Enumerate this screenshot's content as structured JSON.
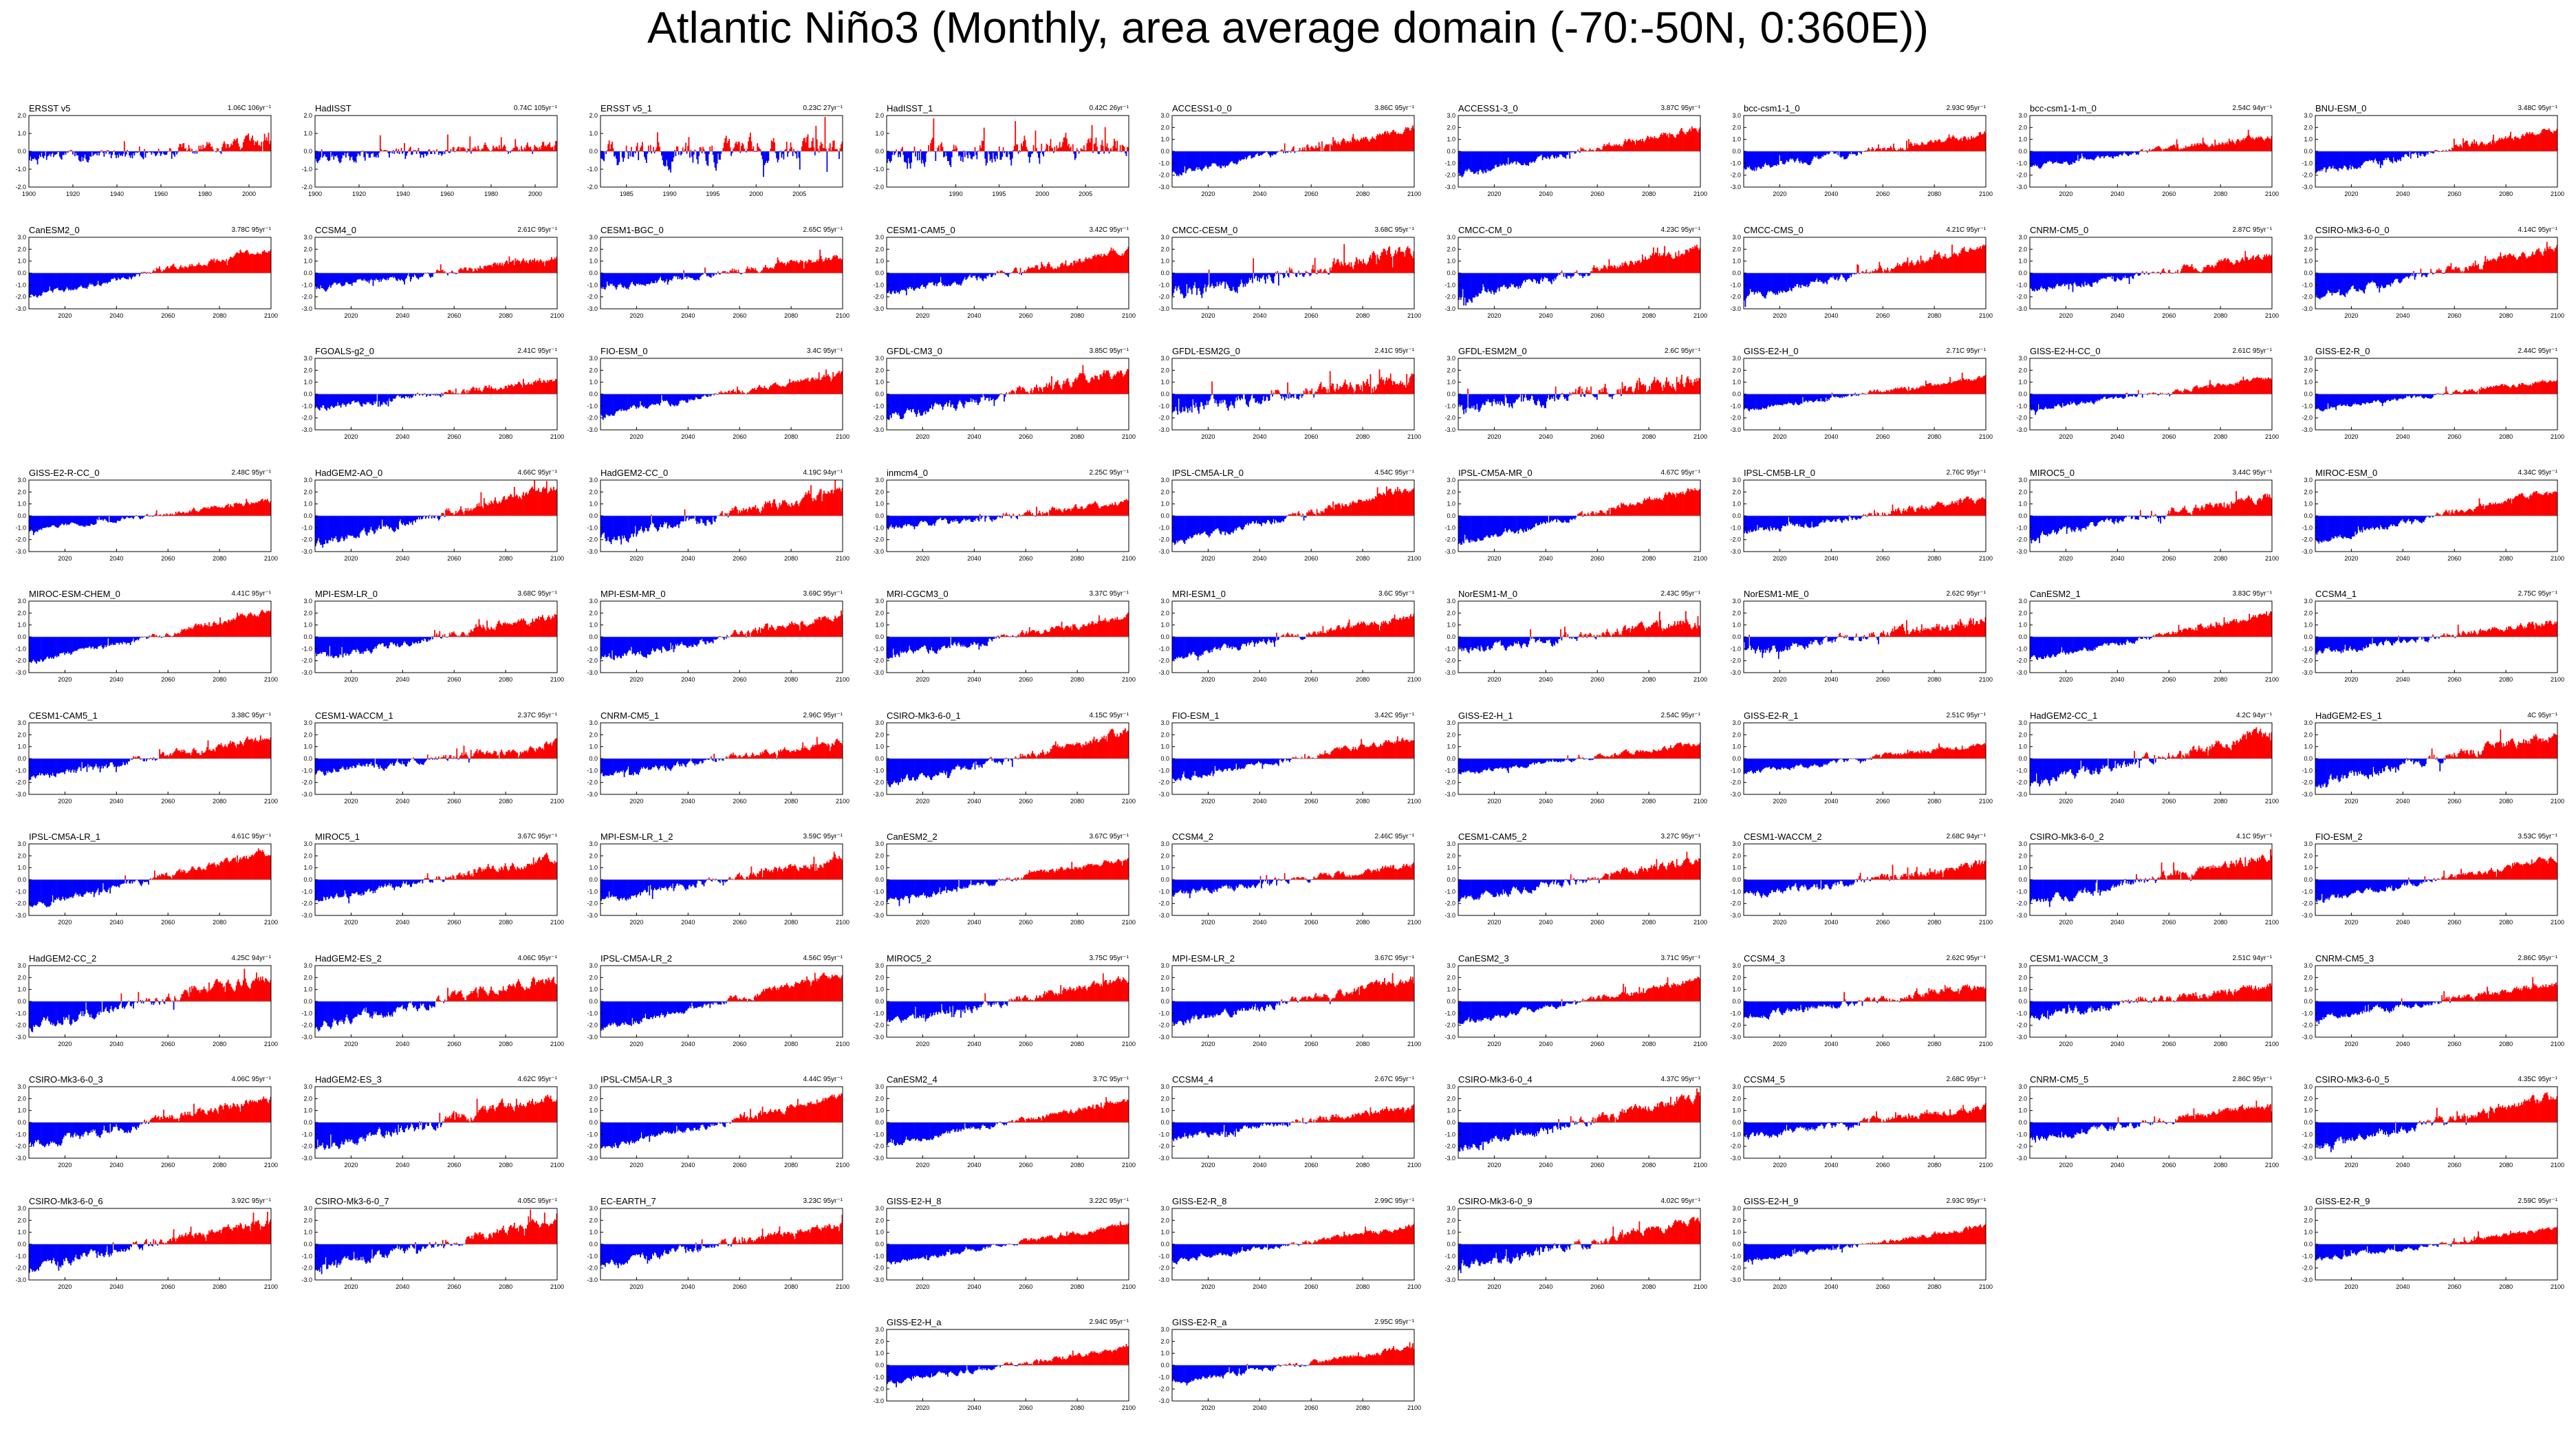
{
  "figure": {
    "title": "Atlantic Niño3 (Monthly, area average domain (-70:-50N, 0:360E))",
    "colors": {
      "positive": "#ff0000",
      "negative": "#0000ff",
      "line": "#808080",
      "axis": "#000000"
    }
  },
  "chart_data": [
    {
      "type": "area",
      "title": "ERSST v5",
      "trend": "1.06C 106yr⁻¹",
      "x_range": [
        1900,
        2010
      ],
      "ylim": [
        -2,
        2
      ],
      "yticks": [
        "-2.0",
        "-1.0",
        "0.0",
        "1.0",
        "2.0"
      ],
      "xticks": [
        "1900",
        "1920",
        "1940",
        "1960",
        "1980",
        "2000"
      ],
      "trend_total": 1.06,
      "variability": 0.35,
      "seed": 1
    },
    {
      "type": "area",
      "title": "HadISST",
      "trend": "0.74C 105yr⁻¹",
      "x_range": [
        1900,
        2010
      ],
      "ylim": [
        -2,
        2
      ],
      "yticks": [
        "-2.0",
        "-1.0",
        "0.0",
        "1.0",
        "2.0"
      ],
      "xticks": [
        "1900",
        "1920",
        "1940",
        "1960",
        "1980",
        "2000"
      ],
      "trend_total": 0.74,
      "variability": 0.35,
      "seed": 2
    },
    {
      "type": "area",
      "title": "ERSST v5_1",
      "trend": "0.23C 27yr⁻¹",
      "x_range": [
        1982,
        2010
      ],
      "ylim": [
        -2,
        2
      ],
      "yticks": [
        "-2.0",
        "-1.0",
        "0.0",
        "1.0",
        "2.0"
      ],
      "xticks": [
        "1985",
        "1990",
        "1995",
        "2000",
        "2005"
      ],
      "trend_total": 0.23,
      "variability": 0.7,
      "seed": 3
    },
    {
      "type": "area",
      "title": "HadISST_1",
      "trend": "0.42C 26yr⁻¹",
      "x_range": [
        1982,
        2010
      ],
      "ylim": [
        -2,
        2
      ],
      "yticks": [
        "-2.0",
        "-1.0",
        "0.0",
        "1.0",
        "2.0"
      ],
      "xticks": [
        "1990",
        "1995",
        "2000",
        "2005"
      ],
      "trend_total": 0.42,
      "variability": 0.7,
      "seed": 4
    },
    {
      "type": "area",
      "title": "ACCESS1-0_0",
      "trend": "3.86C 95yr⁻¹",
      "trend_total": 3.86,
      "variability": 0.3,
      "seed": 5
    },
    {
      "type": "area",
      "title": "ACCESS1-3_0",
      "trend": "3.87C 95yr⁻¹",
      "trend_total": 3.87,
      "variability": 0.3,
      "seed": 6
    },
    {
      "type": "area",
      "title": "bcc-csm1-1_0",
      "trend": "2.93C 95yr⁻¹",
      "trend_total": 2.93,
      "variability": 0.3,
      "seed": 7
    },
    {
      "type": "area",
      "title": "bcc-csm1-1-m_0",
      "trend": "2.54C 94yr⁻¹",
      "trend_total": 2.54,
      "variability": 0.25,
      "seed": 8
    },
    {
      "type": "area",
      "title": "BNU-ESM_0",
      "trend": "3.48C 95yr⁻¹",
      "trend_total": 3.48,
      "variability": 0.3,
      "seed": 9
    },
    {
      "type": "area",
      "title": "CanESM2_0",
      "trend": "3.78C 95yr⁻¹",
      "trend_total": 3.78,
      "variability": 0.25,
      "seed": 10
    },
    {
      "type": "area",
      "title": "CCSM4_0",
      "trend": "2.61C 95yr⁻¹",
      "trend_total": 2.61,
      "variability": 0.3,
      "seed": 11
    },
    {
      "type": "area",
      "title": "CESM1-BGC_0",
      "trend": "2.65C 95yr⁻¹",
      "trend_total": 2.65,
      "variability": 0.3,
      "seed": 12
    },
    {
      "type": "area",
      "title": "CESM1-CAM5_0",
      "trend": "3.42C 95yr⁻¹",
      "trend_total": 3.42,
      "variability": 0.3,
      "seed": 13
    },
    {
      "type": "area",
      "title": "CMCC-CESM_0",
      "trend": "3.68C 95yr⁻¹",
      "trend_total": 3.68,
      "variability": 0.6,
      "seed": 14
    },
    {
      "type": "area",
      "title": "CMCC-CM_0",
      "trend": "4.23C 95yr⁻¹",
      "trend_total": 4.23,
      "variability": 0.4,
      "seed": 15
    },
    {
      "type": "area",
      "title": "CMCC-CMS_0",
      "trend": "4.21C 95yr⁻¹",
      "trend_total": 4.21,
      "variability": 0.35,
      "seed": 16
    },
    {
      "type": "area",
      "title": "CNRM-CM5_0",
      "trend": "2.87C 95yr⁻¹",
      "trend_total": 2.87,
      "variability": 0.3,
      "seed": 17
    },
    {
      "type": "area",
      "title": "CSIRO-Mk3-6-0_0",
      "trend": "4.14C 95yr⁻¹",
      "trend_total": 4.14,
      "variability": 0.35,
      "seed": 18
    },
    {
      "type": "area",
      "title": "FGOALS-g2_0",
      "trend": "2.41C 95yr⁻¹",
      "trend_total": 2.41,
      "variability": 0.3,
      "seed": 19
    },
    {
      "type": "area",
      "title": "FIO-ESM_0",
      "trend": "3.4C 95yr⁻¹",
      "trend_total": 3.4,
      "variability": 0.25,
      "seed": 20
    },
    {
      "type": "area",
      "title": "GFDL-CM3_0",
      "trend": "3.85C 95yr⁻¹",
      "trend_total": 3.85,
      "variability": 0.45,
      "seed": 21
    },
    {
      "type": "area",
      "title": "GFDL-ESM2G_0",
      "trend": "2.41C 95yr⁻¹",
      "trend_total": 2.41,
      "variability": 0.6,
      "seed": 22
    },
    {
      "type": "area",
      "title": "GFDL-ESM2M_0",
      "trend": "2.6C 95yr⁻¹",
      "trend_total": 2.6,
      "variability": 0.6,
      "seed": 23
    },
    {
      "type": "area",
      "title": "GISS-E2-H_0",
      "trend": "2.71C 95yr⁻¹",
      "trend_total": 2.71,
      "variability": 0.2,
      "seed": 24
    },
    {
      "type": "area",
      "title": "GISS-E2-H-CC_0",
      "trend": "2.61C 95yr⁻¹",
      "trend_total": 2.61,
      "variability": 0.2,
      "seed": 25
    },
    {
      "type": "area",
      "title": "GISS-E2-R_0",
      "trend": "2.44C 95yr⁻¹",
      "trend_total": 2.44,
      "variability": 0.2,
      "seed": 26
    },
    {
      "type": "area",
      "title": "GISS-E2-R-CC_0",
      "trend": "2.48C 95yr⁻¹",
      "trend_total": 2.48,
      "variability": 0.2,
      "seed": 27
    },
    {
      "type": "area",
      "title": "HadGEM2-AO_0",
      "trend": "4.66C 95yr⁻¹",
      "trend_total": 4.66,
      "variability": 0.4,
      "seed": 28
    },
    {
      "type": "area",
      "title": "HadGEM2-CC_0",
      "trend": "4.19C 94yr⁻¹",
      "trend_total": 4.19,
      "variability": 0.45,
      "seed": 29
    },
    {
      "type": "area",
      "title": "inmcm4_0",
      "trend": "2.25C 95yr⁻¹",
      "trend_total": 2.25,
      "variability": 0.3,
      "seed": 30
    },
    {
      "type": "area",
      "title": "IPSL-CM5A-LR_0",
      "trend": "4.54C 95yr⁻¹",
      "trend_total": 4.54,
      "variability": 0.3,
      "seed": 31
    },
    {
      "type": "area",
      "title": "IPSL-CM5A-MR_0",
      "trend": "4.67C 95yr⁻¹",
      "trend_total": 4.67,
      "variability": 0.3,
      "seed": 32
    },
    {
      "type": "area",
      "title": "IPSL-CM5B-LR_0",
      "trend": "2.76C 95yr⁻¹",
      "trend_total": 2.76,
      "variability": 0.3,
      "seed": 33
    },
    {
      "type": "area",
      "title": "MIROC5_0",
      "trend": "3.44C 95yr⁻¹",
      "trend_total": 3.44,
      "variability": 0.35,
      "seed": 34
    },
    {
      "type": "area",
      "title": "MIROC-ESM_0",
      "trend": "4.34C 95yr⁻¹",
      "trend_total": 4.34,
      "variability": 0.25,
      "seed": 35
    },
    {
      "type": "area",
      "title": "MIROC-ESM-CHEM_0",
      "trend": "4.41C 95yr⁻¹",
      "trend_total": 4.41,
      "variability": 0.25,
      "seed": 36
    },
    {
      "type": "area",
      "title": "MPI-ESM-LR_0",
      "trend": "3.68C 95yr⁻¹",
      "trend_total": 3.68,
      "variability": 0.35,
      "seed": 37
    },
    {
      "type": "area",
      "title": "MPI-ESM-MR_0",
      "trend": "3.69C 95yr⁻¹",
      "trend_total": 3.69,
      "variability": 0.35,
      "seed": 38
    },
    {
      "type": "area",
      "title": "MRI-CGCM3_0",
      "trend": "3.37C 95yr⁻¹",
      "trend_total": 3.37,
      "variability": 0.3,
      "seed": 39
    },
    {
      "type": "area",
      "title": "MRI-ESM1_0",
      "trend": "3.6C 95yr⁻¹",
      "trend_total": 3.6,
      "variability": 0.3,
      "seed": 40
    },
    {
      "type": "area",
      "title": "NorESM1-M_0",
      "trend": "2.43C 95yr⁻¹",
      "trend_total": 2.43,
      "variability": 0.45,
      "seed": 41
    },
    {
      "type": "area",
      "title": "NorESM1-ME_0",
      "trend": "2.62C 95yr⁻¹",
      "trend_total": 2.62,
      "variability": 0.45,
      "seed": 42
    },
    {
      "type": "area",
      "title": "CanESM2_1",
      "trend": "3.83C 95yr⁻¹",
      "trend_total": 3.83,
      "variability": 0.25,
      "seed": 43
    },
    {
      "type": "area",
      "title": "CCSM4_1",
      "trend": "2.75C 95yr⁻¹",
      "trend_total": 2.75,
      "variability": 0.3,
      "seed": 44
    },
    {
      "type": "area",
      "title": "CESM1-CAM5_1",
      "trend": "3.38C 95yr⁻¹",
      "trend_total": 3.38,
      "variability": 0.35,
      "seed": 45
    },
    {
      "type": "area",
      "title": "CESM1-WACCM_1",
      "trend": "2.37C 95yr⁻¹",
      "trend_total": 2.37,
      "variability": 0.35,
      "seed": 46
    },
    {
      "type": "area",
      "title": "CNRM-CM5_1",
      "trend": "2.96C 95yr⁻¹",
      "trend_total": 2.96,
      "variability": 0.3,
      "seed": 47
    },
    {
      "type": "area",
      "title": "CSIRO-Mk3-6-0_1",
      "trend": "4.15C 95yr⁻¹",
      "trend_total": 4.15,
      "variability": 0.4,
      "seed": 48
    },
    {
      "type": "area",
      "title": "FIO-ESM_1",
      "trend": "3.42C 95yr⁻¹",
      "trend_total": 3.42,
      "variability": 0.25,
      "seed": 49
    },
    {
      "type": "area",
      "title": "GISS-E2-H_1",
      "trend": "2.54C 95yr⁻¹",
      "trend_total": 2.54,
      "variability": 0.2,
      "seed": 50
    },
    {
      "type": "area",
      "title": "GISS-E2-R_1",
      "trend": "2.51C 95yr⁻¹",
      "trend_total": 2.51,
      "variability": 0.2,
      "seed": 51
    },
    {
      "type": "area",
      "title": "HadGEM2-CC_1",
      "trend": "4.2C 94yr⁻¹",
      "trend_total": 4.2,
      "variability": 0.45,
      "seed": 52
    },
    {
      "type": "area",
      "title": "HadGEM2-ES_1",
      "trend": "4C 95yr⁻¹",
      "trend_total": 4.0,
      "variability": 0.45,
      "seed": 53
    },
    {
      "type": "area",
      "title": "IPSL-CM5A-LR_1",
      "trend": "4.61C 95yr⁻¹",
      "trend_total": 4.61,
      "variability": 0.3,
      "seed": 54
    },
    {
      "type": "area",
      "title": "MIROC5_1",
      "trend": "3.67C 95yr⁻¹",
      "trend_total": 3.67,
      "variability": 0.35,
      "seed": 55
    },
    {
      "type": "area",
      "title": "MPI-ESM-LR_1_2",
      "trend": "3.59C 95yr⁻¹",
      "trend_total": 3.59,
      "variability": 0.35,
      "seed": 56
    },
    {
      "type": "area",
      "title": "CanESM2_2",
      "trend": "3.67C 95yr⁻¹",
      "trend_total": 3.67,
      "variability": 0.25,
      "seed": 57
    },
    {
      "type": "area",
      "title": "CCSM4_2",
      "trend": "2.46C 95yr⁻¹",
      "trend_total": 2.46,
      "variability": 0.3,
      "seed": 58
    },
    {
      "type": "area",
      "title": "CESM1-CAM5_2",
      "trend": "3.27C 95yr⁻¹",
      "trend_total": 3.27,
      "variability": 0.35,
      "seed": 59
    },
    {
      "type": "area",
      "title": "CESM1-WACCM_2",
      "trend": "2.68C 94yr⁻¹",
      "trend_total": 2.68,
      "variability": 0.35,
      "seed": 60
    },
    {
      "type": "area",
      "title": "CSIRO-Mk3-6-0_2",
      "trend": "4.1C 95yr⁻¹",
      "trend_total": 4.1,
      "variability": 0.4,
      "seed": 61
    },
    {
      "type": "area",
      "title": "FIO-ESM_2",
      "trend": "3.53C 95yr⁻¹",
      "trend_total": 3.53,
      "variability": 0.25,
      "seed": 62
    },
    {
      "type": "area",
      "title": "HadGEM2-CC_2",
      "trend": "4.25C 94yr⁻¹",
      "trend_total": 4.25,
      "variability": 0.45,
      "seed": 63
    },
    {
      "type": "area",
      "title": "HadGEM2-ES_2",
      "trend": "4.06C 95yr⁻¹",
      "trend_total": 4.06,
      "variability": 0.45,
      "seed": 64
    },
    {
      "type": "area",
      "title": "IPSL-CM5A-LR_2",
      "trend": "4.56C 95yr⁻¹",
      "trend_total": 4.56,
      "variability": 0.3,
      "seed": 65
    },
    {
      "type": "area",
      "title": "MIROC5_2",
      "trend": "3.75C 95yr⁻¹",
      "trend_total": 3.75,
      "variability": 0.35,
      "seed": 66
    },
    {
      "type": "area",
      "title": "MPI-ESM-LR_2",
      "trend": "3.67C 95yr⁻¹",
      "trend_total": 3.67,
      "variability": 0.35,
      "seed": 67
    },
    {
      "type": "area",
      "title": "CanESM2_3",
      "trend": "3.71C 95yr⁻¹",
      "trend_total": 3.71,
      "variability": 0.25,
      "seed": 68
    },
    {
      "type": "area",
      "title": "CCSM4_3",
      "trend": "2.62C 95yr⁻¹",
      "trend_total": 2.62,
      "variability": 0.3,
      "seed": 69
    },
    {
      "type": "area",
      "title": "CESM1-WACCM_3",
      "trend": "2.51C 94yr⁻¹",
      "trend_total": 2.51,
      "variability": 0.35,
      "seed": 70
    },
    {
      "type": "area",
      "title": "CNRM-CM5_3",
      "trend": "2.86C 95yr⁻¹",
      "trend_total": 2.86,
      "variability": 0.3,
      "seed": 71
    },
    {
      "type": "area",
      "title": "CSIRO-Mk3-6-0_3",
      "trend": "4.06C 95yr⁻¹",
      "trend_total": 4.06,
      "variability": 0.4,
      "seed": 72
    },
    {
      "type": "area",
      "title": "HadGEM2-ES_3",
      "trend": "4.62C 95yr⁻¹",
      "trend_total": 4.62,
      "variability": 0.45,
      "seed": 73
    },
    {
      "type": "area",
      "title": "IPSL-CM5A-LR_3",
      "trend": "4.44C 95yr⁻¹",
      "trend_total": 4.44,
      "variability": 0.3,
      "seed": 74
    },
    {
      "type": "area",
      "title": "CanESM2_4",
      "trend": "3.7C 95yr⁻¹",
      "trend_total": 3.7,
      "variability": 0.25,
      "seed": 75
    },
    {
      "type": "area",
      "title": "CCSM4_4",
      "trend": "2.67C 95yr⁻¹",
      "trend_total": 2.67,
      "variability": 0.3,
      "seed": 76
    },
    {
      "type": "area",
      "title": "CSIRO-Mk3-6-0_4",
      "trend": "4.37C 95yr⁻¹",
      "trend_total": 4.37,
      "variability": 0.4,
      "seed": 77
    },
    {
      "type": "area",
      "title": "CCSM4_5",
      "trend": "2.68C 95yr⁻¹",
      "trend_total": 2.68,
      "variability": 0.3,
      "seed": 78
    },
    {
      "type": "area",
      "title": "CNRM-CM5_5",
      "trend": "2.86C 95yr⁻¹",
      "trend_total": 2.86,
      "variability": 0.3,
      "seed": 79
    },
    {
      "type": "area",
      "title": "CSIRO-Mk3-6-0_5",
      "trend": "4.35C 95yr⁻¹",
      "trend_total": 4.35,
      "variability": 0.4,
      "seed": 80
    },
    {
      "type": "area",
      "title": "CSIRO-Mk3-6-0_6",
      "trend": "3.92C 95yr⁻¹",
      "trend_total": 3.92,
      "variability": 0.4,
      "seed": 81
    },
    {
      "type": "area",
      "title": "CSIRO-Mk3-6-0_7",
      "trend": "4.05C 95yr⁻¹",
      "trend_total": 4.05,
      "variability": 0.4,
      "seed": 82
    },
    {
      "type": "area",
      "title": "EC-EARTH_7",
      "trend": "3.23C 95yr⁻¹",
      "trend_total": 3.23,
      "variability": 0.35,
      "seed": 83
    },
    {
      "type": "area",
      "title": "GISS-E2-H_8",
      "trend": "3.22C 95yr⁻¹",
      "trend_total": 3.22,
      "variability": 0.2,
      "seed": 84
    },
    {
      "type": "area",
      "title": "GISS-E2-R_8",
      "trend": "2.99C 95yr⁻¹",
      "trend_total": 2.99,
      "variability": 0.2,
      "seed": 85
    },
    {
      "type": "area",
      "title": "CSIRO-Mk3-6-0_9",
      "trend": "4.02C 95yr⁻¹",
      "trend_total": 4.02,
      "variability": 0.4,
      "seed": 86
    },
    {
      "type": "area",
      "title": "GISS-E2-H_9",
      "trend": "2.93C 95yr⁻¹",
      "trend_total": 2.93,
      "variability": 0.2,
      "seed": 87
    },
    {
      "type": "area",
      "title": "GISS-E2-R_9",
      "trend": "2.59C 95yr⁻¹",
      "trend_total": 2.59,
      "variability": 0.2,
      "seed": 88
    },
    {
      "type": "area",
      "title": "GISS-E2-H_a",
      "trend": "2.94C 95yr⁻¹",
      "trend_total": 2.94,
      "variability": 0.2,
      "seed": 89
    },
    {
      "type": "area",
      "title": "GISS-E2-R_a",
      "trend": "2.95C 95yr⁻¹",
      "trend_total": 2.95,
      "variability": 0.2,
      "seed": 90
    }
  ]
}
